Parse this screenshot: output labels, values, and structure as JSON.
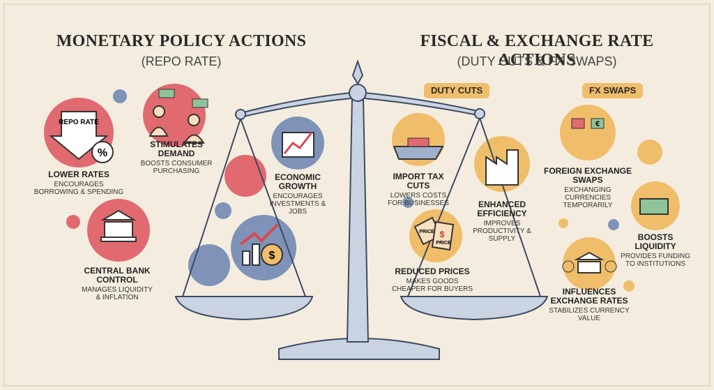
{
  "left": {
    "title": "MONETARY POLICY ACTIONS",
    "subtitle": "(REPO RATE)",
    "icons": {
      "repo": "REPO RATE",
      "percent": "%",
      "dollar": "$"
    },
    "items": [
      {
        "title": "LOWER RATES",
        "desc": "ENCOURAGES BORROWING & SPENDING"
      },
      {
        "title": "STIMULATES DEMAND",
        "desc": "BOOSTS CONSUMER PURCHASING"
      },
      {
        "title": "ECONOMIC GROWTH",
        "desc": "ENCOURAGES INVESTMENTS & JOBS"
      },
      {
        "title": "CENTRAL BANK CONTROL",
        "desc": "MANAGES LIQUIDITY & INFLATION"
      }
    ]
  },
  "right": {
    "title": "FISCAL & EXCHANGE RATE ACTIONS",
    "subtitle": "(DUTY CUTS & FX SWAPS)",
    "badges": [
      "DUTY CUTS",
      "FX SWAPS"
    ],
    "icons": {
      "price": "PRICE",
      "price_tag": "$",
      "euro": "€"
    },
    "items": [
      {
        "title": "IMPORT TAX CUTS",
        "desc": "LOWERS COSTS FOR BUSINESSES"
      },
      {
        "title": "ENHANCED EFFICIENCY",
        "desc": "IMPROVES PRODUCTIVITY & SUPPLY"
      },
      {
        "title": "REDUCED PRICES",
        "desc": "MAKES GOODS CHEAPER FOR BUYERS"
      },
      {
        "title": "FOREIGN EXCHANGE SWAPS",
        "desc": "EXCHANGING CURRENCIES TEMPORARILY"
      },
      {
        "title": "BOOSTS LIQUIDITY",
        "desc": "PROVIDES FUNDING TO INSTITUTIONS"
      },
      {
        "title": "INFLUENCES EXCHANGE RATES",
        "desc": "STABILIZES CURRENCY VALUE"
      }
    ]
  }
}
